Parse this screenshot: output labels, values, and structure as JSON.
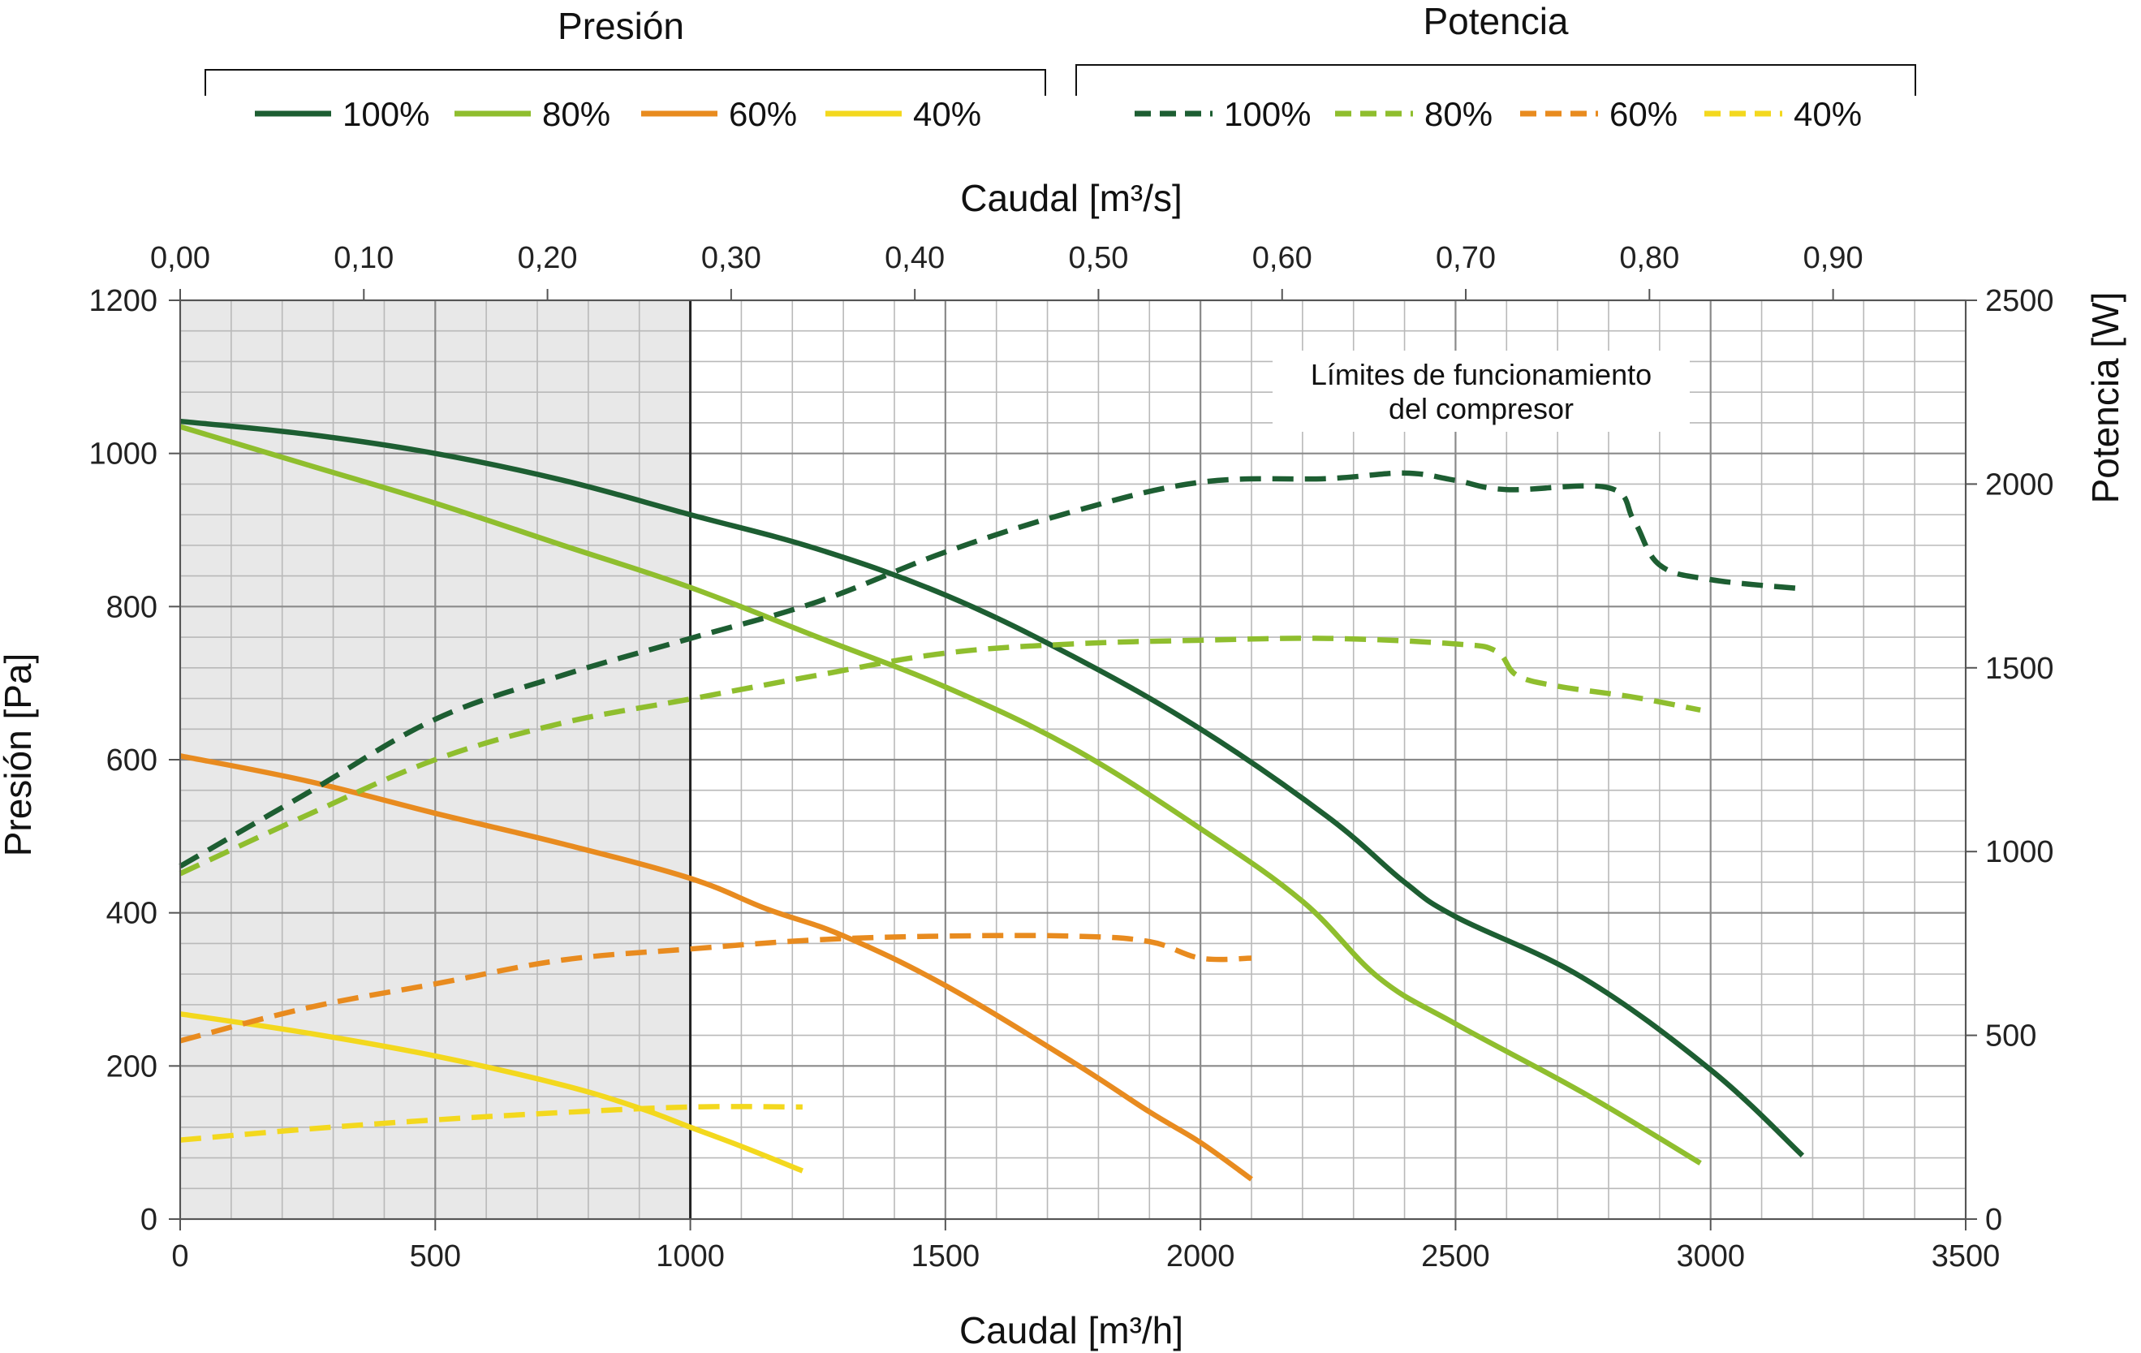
{
  "legend": {
    "pressure_group_title": "Presión",
    "power_group_title": "Potencia",
    "pressure_items": [
      "100%",
      "80%",
      "60%",
      "40%"
    ],
    "power_items": [
      "100%",
      "80%",
      "60%",
      "40%"
    ]
  },
  "colors": {
    "100%": "#1d5e32",
    "80%": "#8fbe2e",
    "60%": "#e88b1f",
    "40%": "#f3d81e",
    "shade": "#e8e8e8"
  },
  "annotation": {
    "line1": "Límites de funcionamiento",
    "line2": "del compresor"
  },
  "chart_data": {
    "type": "line",
    "title": "",
    "xlabel": "Caudal [m³/h]",
    "x2label": "Caudal [m³/s]",
    "ylabel": "Presión [Pa]",
    "y2label": "Potencia [W]",
    "xlim": [
      0,
      3500
    ],
    "ylim": [
      0,
      1200
    ],
    "y2lim": [
      0,
      2500
    ],
    "x2lim": [
      0,
      0.9722
    ],
    "x_ticks": [
      0,
      500,
      1000,
      1500,
      2000,
      2500,
      3000,
      3500
    ],
    "y_ticks": [
      0,
      200,
      400,
      600,
      800,
      1000,
      1200
    ],
    "y2_ticks": [
      0,
      500,
      1000,
      1500,
      2000,
      2500
    ],
    "x2_ticks": [
      "0,00",
      "0,10",
      "0,20",
      "0,30",
      "0,40",
      "0,50",
      "0,60",
      "0,70",
      "0,80",
      "0,90"
    ],
    "x2_tick_values": [
      0,
      0.1,
      0.2,
      0.3,
      0.4,
      0.5,
      0.6,
      0.7,
      0.8,
      0.9
    ],
    "shaded_region_x": [
      0,
      1000
    ],
    "grid": true,
    "series": [
      {
        "name": "100%",
        "group": "Presión",
        "axis": "left",
        "style": "solid",
        "x": [
          0,
          250,
          500,
          750,
          1000,
          1250,
          1500,
          1750,
          2000,
          2250,
          2400,
          2500,
          2750,
          3000,
          3180
        ],
        "y": [
          1042,
          1025,
          1000,
          965,
          920,
          875,
          815,
          735,
          640,
          525,
          440,
          395,
          315,
          195,
          83
        ]
      },
      {
        "name": "80%",
        "group": "Presión",
        "axis": "left",
        "style": "solid",
        "x": [
          0,
          250,
          500,
          750,
          1000,
          1250,
          1500,
          1750,
          2000,
          2200,
          2350,
          2500,
          2750,
          2980
        ],
        "y": [
          1035,
          985,
          935,
          880,
          825,
          760,
          695,
          615,
          510,
          415,
          315,
          255,
          165,
          73
        ]
      },
      {
        "name": "60%",
        "group": "Presión",
        "axis": "left",
        "style": "solid",
        "x": [
          0,
          250,
          500,
          750,
          1000,
          1150,
          1300,
          1500,
          1750,
          1900,
          2000,
          2100
        ],
        "y": [
          605,
          572,
          530,
          490,
          445,
          405,
          370,
          305,
          205,
          140,
          100,
          52
        ]
      },
      {
        "name": "40%",
        "group": "Presión",
        "axis": "left",
        "style": "solid",
        "x": [
          0,
          250,
          500,
          750,
          900,
          1000,
          1100,
          1220
        ],
        "y": [
          268,
          243,
          213,
          175,
          145,
          120,
          95,
          63
        ]
      },
      {
        "name": "100%",
        "group": "Potencia",
        "axis": "right",
        "style": "dashed",
        "x": [
          0,
          250,
          500,
          750,
          1000,
          1250,
          1500,
          1750,
          2000,
          2250,
          2400,
          2500,
          2600,
          2800,
          2850,
          2900,
          3000,
          3180
        ],
        "y": [
          960,
          1160,
          1360,
          1480,
          1580,
          1680,
          1815,
          1925,
          2005,
          2015,
          2030,
          2010,
          1985,
          1990,
          1900,
          1780,
          1740,
          1715
        ]
      },
      {
        "name": "80%",
        "group": "Potencia",
        "axis": "right",
        "style": "dashed",
        "x": [
          0,
          250,
          500,
          750,
          1000,
          1250,
          1500,
          1750,
          2000,
          2250,
          2500,
          2580,
          2620,
          2700,
          2850,
          2980
        ],
        "y": [
          940,
          1100,
          1250,
          1350,
          1415,
          1480,
          1540,
          1565,
          1575,
          1580,
          1565,
          1545,
          1480,
          1450,
          1420,
          1385
        ]
      },
      {
        "name": "60%",
        "group": "Potencia",
        "axis": "right",
        "style": "dashed",
        "x": [
          0,
          250,
          500,
          750,
          1000,
          1250,
          1500,
          1750,
          1900,
          2000,
          2100
        ],
        "y": [
          485,
          575,
          640,
          705,
          735,
          760,
          770,
          770,
          755,
          710,
          710
        ]
      },
      {
        "name": "40%",
        "group": "Potencia",
        "axis": "right",
        "style": "dashed",
        "x": [
          0,
          250,
          500,
          750,
          1000,
          1220
        ],
        "y": [
          215,
          245,
          270,
          290,
          305,
          305
        ]
      }
    ]
  }
}
